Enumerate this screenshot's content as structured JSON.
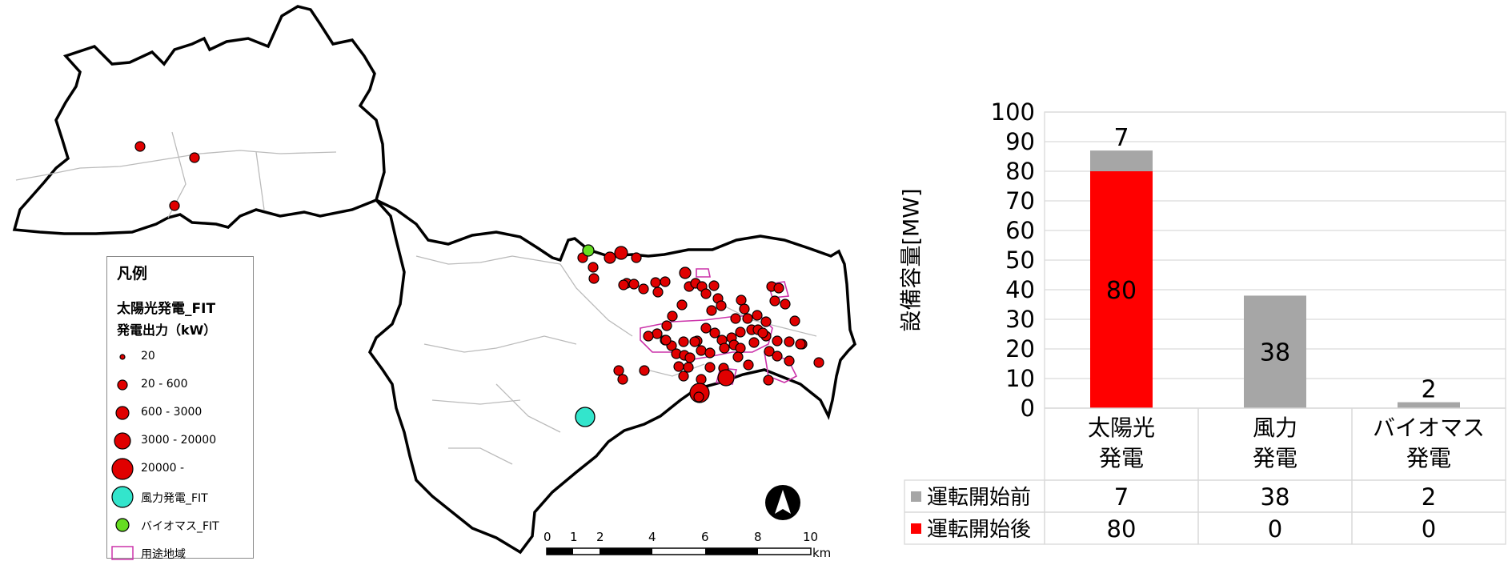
{
  "legend": {
    "title": "凡例",
    "layer_title": "太陽光発電_FIT",
    "size_title": "発電出力（kW）",
    "items": [
      {
        "label": "20",
        "symbol": "circle",
        "color": "#e00000",
        "size": 0
      },
      {
        "label": "20 - 600",
        "symbol": "circle",
        "color": "#e00000",
        "size": 1
      },
      {
        "label": "600 - 3000",
        "symbol": "circle",
        "color": "#e00000",
        "size": 2
      },
      {
        "label": "3000 - 20000",
        "symbol": "circle",
        "color": "#e00000",
        "size": 3
      },
      {
        "label": "20000 -",
        "symbol": "circle",
        "color": "#e00000",
        "size": 4
      },
      {
        "label": "風力発電_FIT",
        "symbol": "circle",
        "color": "#33e5cc",
        "size": 4
      },
      {
        "label": "バイオマス_FIT",
        "symbol": "circle",
        "color": "#66dd22",
        "size": 2
      },
      {
        "label": "用途地域",
        "symbol": "rect",
        "color": "#cc33aa",
        "size": 0
      }
    ]
  },
  "scale_bar": {
    "ticks": [
      "0",
      "1",
      "2",
      "4",
      "6",
      "8",
      "10"
    ],
    "unit": "km"
  },
  "colors": {
    "solar": "#e00000",
    "wind": "#33e5cc",
    "biomass": "#66dd22",
    "zoning": "#cc33aa",
    "before": "#a6a6a6",
    "after": "#ff0000"
  },
  "chart_data": {
    "type": "bar",
    "stacked": true,
    "categories": [
      "太陽光\n発電",
      "風力\n発電",
      "バイオマス\n発電"
    ],
    "ylabel": "設備容量[MW]",
    "ylim": [
      0,
      100
    ],
    "yticks": [
      0,
      10,
      20,
      30,
      40,
      50,
      60,
      70,
      80,
      90,
      100
    ],
    "grid": true,
    "series": [
      {
        "name": "運転開始後",
        "color": "#ff0000",
        "values": [
          80,
          0,
          0
        ]
      },
      {
        "name": "運転開始前",
        "color": "#a6a6a6",
        "values": [
          7,
          38,
          2
        ]
      }
    ],
    "table_rows": [
      "運転開始前",
      "運転開始後"
    ]
  }
}
